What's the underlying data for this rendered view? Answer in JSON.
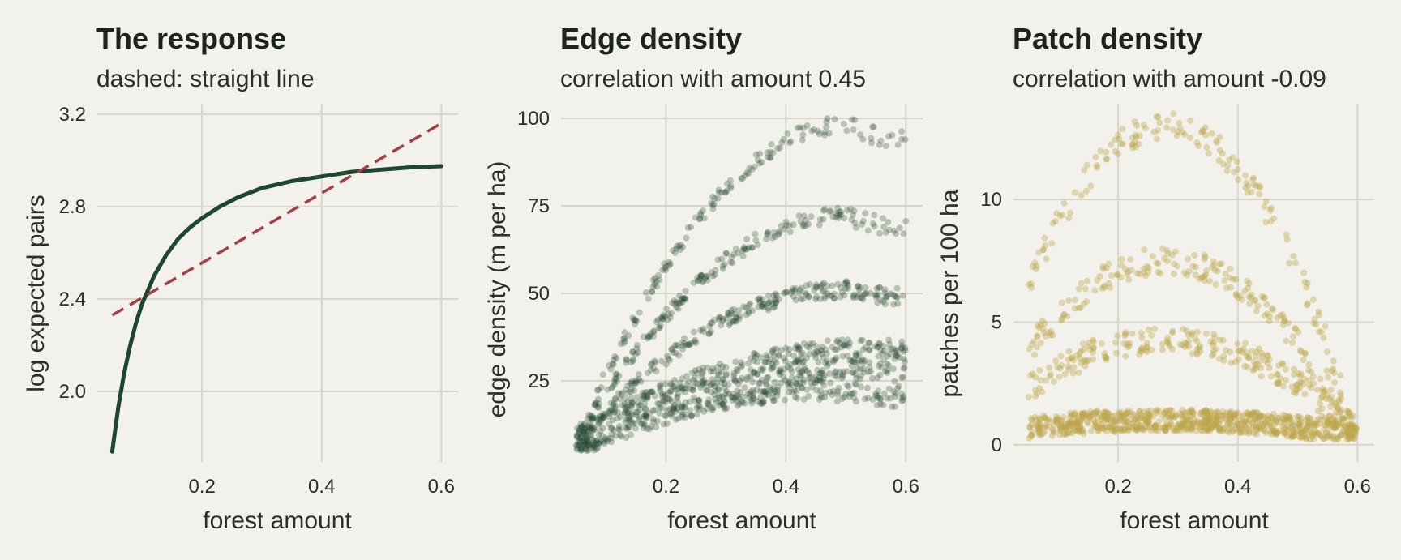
{
  "chart_data": [
    {
      "type": "line",
      "title": "The response",
      "subtitle": "dashed: straight line",
      "xlabel": "forest amount",
      "ylabel": "log expected pairs",
      "xlim": [
        0.025,
        0.628
      ],
      "ylim": [
        1.695,
        3.245
      ],
      "xticks": [
        0.2,
        0.4,
        0.6
      ],
      "xtick_labels": [
        "0.2",
        "0.4",
        "0.6"
      ],
      "yticks": [
        2.0,
        2.4,
        2.8,
        3.2
      ],
      "ytick_labels": [
        "2.0",
        "2.4",
        "2.8",
        "3.2"
      ],
      "grid": true,
      "colors": {
        "curve": "#1f4630",
        "straight": "#a63e44"
      },
      "series": [
        {
          "style": "solid",
          "x": [
            0.05,
            0.06,
            0.07,
            0.08,
            0.09,
            0.1,
            0.12,
            0.14,
            0.16,
            0.18,
            0.2,
            0.23,
            0.26,
            0.3,
            0.35,
            0.4,
            0.45,
            0.5,
            0.55,
            0.6
          ],
          "y": [
            1.74,
            1.93,
            2.08,
            2.2,
            2.3,
            2.38,
            2.5,
            2.59,
            2.66,
            2.71,
            2.75,
            2.8,
            2.84,
            2.88,
            2.91,
            2.93,
            2.95,
            2.96,
            2.97,
            2.975
          ]
        },
        {
          "style": "dashed",
          "x": [
            0.05,
            0.6
          ],
          "y": [
            2.33,
            3.16
          ]
        }
      ]
    },
    {
      "type": "scatter",
      "title": "Edge density",
      "subtitle": "correlation with amount 0.45",
      "xlabel": "forest amount",
      "ylabel": "edge density (m per ha)",
      "xlim": [
        0.025,
        0.628
      ],
      "ylim": [
        1.8,
        104.2
      ],
      "xticks": [
        0.2,
        0.4,
        0.6
      ],
      "xtick_labels": [
        "0.2",
        "0.4",
        "0.6"
      ],
      "yticks": [
        25,
        50,
        75,
        100
      ],
      "ytick_labels": [
        "25",
        "50",
        "75",
        "100"
      ],
      "grid": true,
      "color": "#1f4630",
      "point_count": 1400,
      "x_range": [
        0.05,
        0.6
      ],
      "bands": [
        {
          "peak": 98,
          "peak_x": 0.5,
          "start": 8,
          "points": 150
        },
        {
          "peak": 72,
          "peak_x": 0.5,
          "start": 8,
          "points": 200
        },
        {
          "peak": 51,
          "peak_x": 0.5,
          "start": 7,
          "points": 250
        },
        {
          "peak": 28,
          "peak_x": 0.5,
          "start": 7,
          "points": 800
        }
      ]
    },
    {
      "type": "scatter",
      "title": "Patch density",
      "subtitle": "correlation with amount -0.09",
      "xlabel": "forest amount",
      "ylabel": "patches per 100 ha",
      "xlim": [
        0.025,
        0.628
      ],
      "ylim": [
        -0.7,
        13.9
      ],
      "xticks": [
        0.2,
        0.4,
        0.6
      ],
      "xtick_labels": [
        "0.2",
        "0.4",
        "0.6"
      ],
      "yticks": [
        0,
        5,
        10
      ],
      "ytick_labels": [
        "0",
        "5",
        "10"
      ],
      "grid": true,
      "color": "#bca64a",
      "point_count": 1400,
      "x_range": [
        0.05,
        0.6
      ],
      "bands": [
        {
          "peak": 13.0,
          "peak_x": 0.28,
          "points": 150
        },
        {
          "peak": 7.5,
          "peak_x": 0.28,
          "points": 200
        },
        {
          "peak": 4.3,
          "peak_x": 0.28,
          "points": 250
        },
        {
          "peak": 1.0,
          "peak_x": 0.28,
          "points": 800
        }
      ]
    }
  ]
}
